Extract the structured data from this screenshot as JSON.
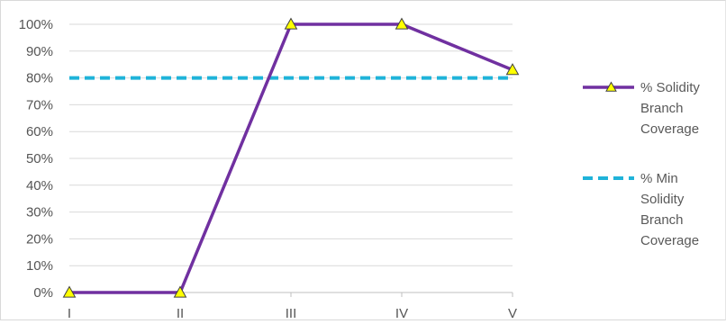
{
  "chart_data": {
    "type": "line",
    "title": "",
    "xlabel": "",
    "ylabel": "",
    "categories": [
      "I",
      "II",
      "III",
      "IV",
      "V"
    ],
    "y_ticks": [
      "0%",
      "10%",
      "20%",
      "30%",
      "40%",
      "50%",
      "60%",
      "70%",
      "80%",
      "90%",
      "100%"
    ],
    "ylim": [
      0,
      100
    ],
    "grid": "horizontal",
    "legend_position": "right",
    "series": [
      {
        "name": "% Solidity Branch Coverage",
        "name_lines": [
          "% Solidity",
          "Branch",
          "Coverage"
        ],
        "values": [
          0,
          0,
          100,
          100,
          83
        ],
        "color": "#7030a0",
        "marker": "triangle",
        "marker_color": "#ffff00",
        "line_style": "solid"
      },
      {
        "name": "% Min Solidity Branch Coverage",
        "name_lines": [
          "% Min",
          "Solidity",
          "Branch",
          "Coverage"
        ],
        "values": [
          80,
          80,
          80,
          80,
          80
        ],
        "color": "#1fb3d9",
        "line_style": "dashed"
      }
    ]
  }
}
